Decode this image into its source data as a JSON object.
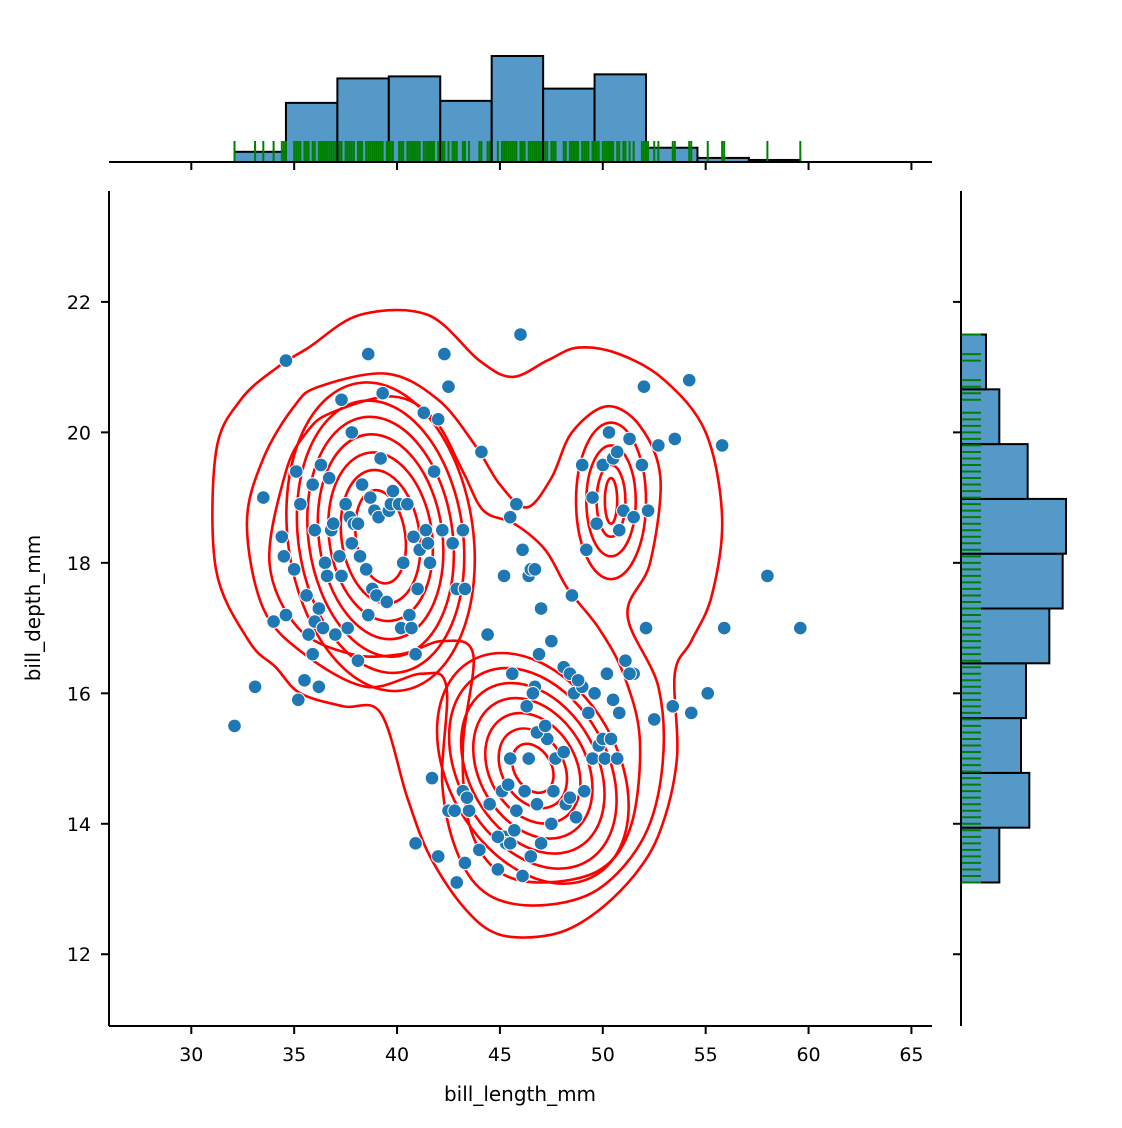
{
  "chart_data": {
    "type": "scatter",
    "title": "",
    "xlabel": "bill_length_mm",
    "ylabel": "bill_depth_mm",
    "xlim": [
      26,
      66
    ],
    "ylim": [
      10.9,
      23.7
    ],
    "xticks": [
      30,
      35,
      40,
      45,
      50,
      55,
      60,
      65
    ],
    "yticks": [
      12,
      14,
      16,
      18,
      20,
      22
    ],
    "grid": false,
    "legend": "none",
    "colors": {
      "points": "#1f77b4",
      "point_edge": "#ffffff",
      "hist_fill": "#5599c8",
      "hist_edge": "#000000",
      "kde": "#ff0000",
      "rug": "#008000"
    },
    "points": [
      [
        32.1,
        15.5
      ],
      [
        33.1,
        16.1
      ],
      [
        33.5,
        19.0
      ],
      [
        34.0,
        17.1
      ],
      [
        34.4,
        18.4
      ],
      [
        34.5,
        18.1
      ],
      [
        34.6,
        21.1
      ],
      [
        34.6,
        17.2
      ],
      [
        35.0,
        17.9
      ],
      [
        35.1,
        19.4
      ],
      [
        35.2,
        15.9
      ],
      [
        35.3,
        18.9
      ],
      [
        35.5,
        16.2
      ],
      [
        35.6,
        17.5
      ],
      [
        35.7,
        16.9
      ],
      [
        35.9,
        19.2
      ],
      [
        35.9,
        16.6
      ],
      [
        36.0,
        18.5
      ],
      [
        36.0,
        17.1
      ],
      [
        36.2,
        16.1
      ],
      [
        36.2,
        17.3
      ],
      [
        36.3,
        19.5
      ],
      [
        36.4,
        17.0
      ],
      [
        36.5,
        18.0
      ],
      [
        36.6,
        17.8
      ],
      [
        36.7,
        19.3
      ],
      [
        36.8,
        18.5
      ],
      [
        36.9,
        18.6
      ],
      [
        37.0,
        16.9
      ],
      [
        37.2,
        18.1
      ],
      [
        37.3,
        20.5
      ],
      [
        37.3,
        17.8
      ],
      [
        37.5,
        18.9
      ],
      [
        37.6,
        17.0
      ],
      [
        37.7,
        18.7
      ],
      [
        37.8,
        20.0
      ],
      [
        37.8,
        18.3
      ],
      [
        37.9,
        18.6
      ],
      [
        38.1,
        18.6
      ],
      [
        38.1,
        16.5
      ],
      [
        38.2,
        18.1
      ],
      [
        38.3,
        19.2
      ],
      [
        38.5,
        17.9
      ],
      [
        38.6,
        21.2
      ],
      [
        38.6,
        17.2
      ],
      [
        38.7,
        19.0
      ],
      [
        38.8,
        17.6
      ],
      [
        38.9,
        18.8
      ],
      [
        39.0,
        17.5
      ],
      [
        39.1,
        18.7
      ],
      [
        39.2,
        19.6
      ],
      [
        39.3,
        20.6
      ],
      [
        39.5,
        17.4
      ],
      [
        39.6,
        18.8
      ],
      [
        39.7,
        18.9
      ],
      [
        39.8,
        19.1
      ],
      [
        40.1,
        18.9
      ],
      [
        40.2,
        17.0
      ],
      [
        40.3,
        18.0
      ],
      [
        40.5,
        18.9
      ],
      [
        40.6,
        17.2
      ],
      [
        40.7,
        17.0
      ],
      [
        40.8,
        18.4
      ],
      [
        40.9,
        16.6
      ],
      [
        41.0,
        17.6
      ],
      [
        41.1,
        18.2
      ],
      [
        41.3,
        20.3
      ],
      [
        41.4,
        18.5
      ],
      [
        41.5,
        18.3
      ],
      [
        41.6,
        18.0
      ],
      [
        41.8,
        19.4
      ],
      [
        42.0,
        20.2
      ],
      [
        42.2,
        18.5
      ],
      [
        42.3,
        21.2
      ],
      [
        42.5,
        20.7
      ],
      [
        42.7,
        18.3
      ],
      [
        42.9,
        17.6
      ],
      [
        43.2,
        18.5
      ],
      [
        43.3,
        17.6
      ],
      [
        44.1,
        19.7
      ],
      [
        45.2,
        17.8
      ],
      [
        45.5,
        18.7
      ],
      [
        45.8,
        18.9
      ],
      [
        46.0,
        21.5
      ],
      [
        46.1,
        18.2
      ],
      [
        46.4,
        17.8
      ],
      [
        46.5,
        17.9
      ],
      [
        46.7,
        17.9
      ],
      [
        47.0,
        17.3
      ],
      [
        47.5,
        16.8
      ],
      [
        48.1,
        16.4
      ],
      [
        48.5,
        17.5
      ],
      [
        49.0,
        19.5
      ],
      [
        49.2,
        18.2
      ],
      [
        49.5,
        19.0
      ],
      [
        49.7,
        18.6
      ],
      [
        50.0,
        19.5
      ],
      [
        50.3,
        20.0
      ],
      [
        50.5,
        19.6
      ],
      [
        50.7,
        19.7
      ],
      [
        50.8,
        18.5
      ],
      [
        51.0,
        18.8
      ],
      [
        51.3,
        19.9
      ],
      [
        51.5,
        18.7
      ],
      [
        51.9,
        19.5
      ],
      [
        52.0,
        20.7
      ],
      [
        52.2,
        18.8
      ],
      [
        52.7,
        19.8
      ],
      [
        53.5,
        19.9
      ],
      [
        54.2,
        20.8
      ],
      [
        55.8,
        19.8
      ],
      [
        40.9,
        13.7
      ],
      [
        41.7,
        14.7
      ],
      [
        42.0,
        13.5
      ],
      [
        42.5,
        14.2
      ],
      [
        42.8,
        14.2
      ],
      [
        42.9,
        13.1
      ],
      [
        43.2,
        14.5
      ],
      [
        43.3,
        13.4
      ],
      [
        43.5,
        14.2
      ],
      [
        44.0,
        13.6
      ],
      [
        44.5,
        14.3
      ],
      [
        44.9,
        13.3
      ],
      [
        45.1,
        14.5
      ],
      [
        45.2,
        13.8
      ],
      [
        45.3,
        13.7
      ],
      [
        45.4,
        14.6
      ],
      [
        45.5,
        13.7
      ],
      [
        45.7,
        13.9
      ],
      [
        45.8,
        14.2
      ],
      [
        46.1,
        13.2
      ],
      [
        46.2,
        14.5
      ],
      [
        46.4,
        15.0
      ],
      [
        46.5,
        13.5
      ],
      [
        46.8,
        14.3
      ],
      [
        47.0,
        13.7
      ],
      [
        47.3,
        15.3
      ],
      [
        47.5,
        14.0
      ],
      [
        47.7,
        15.0
      ],
      [
        48.1,
        15.1
      ],
      [
        48.2,
        14.3
      ],
      [
        48.4,
        14.4
      ],
      [
        48.7,
        14.1
      ],
      [
        49.1,
        14.5
      ],
      [
        49.5,
        15.0
      ],
      [
        49.8,
        15.2
      ],
      [
        50.0,
        15.3
      ],
      [
        50.1,
        15.0
      ],
      [
        50.4,
        15.3
      ],
      [
        50.5,
        15.9
      ],
      [
        51.1,
        16.5
      ],
      [
        51.5,
        16.3
      ],
      [
        52.1,
        17.0
      ],
      [
        52.5,
        15.6
      ],
      [
        53.4,
        15.8
      ],
      [
        54.3,
        15.7
      ],
      [
        55.1,
        16.0
      ],
      [
        55.9,
        17.0
      ],
      [
        58.0,
        17.8
      ],
      [
        59.6,
        17.0
      ],
      [
        43.4,
        14.4
      ],
      [
        44.9,
        13.8
      ],
      [
        45.7,
        13.9
      ],
      [
        46.3,
        15.8
      ],
      [
        46.7,
        16.1
      ],
      [
        47.6,
        14.5
      ],
      [
        48.6,
        16.0
      ],
      [
        49.0,
        16.1
      ],
      [
        50.7,
        15.0
      ],
      [
        46.9,
        16.6
      ],
      [
        49.3,
        15.7
      ],
      [
        48.4,
        16.3
      ],
      [
        46.8,
        15.4
      ],
      [
        45.5,
        15.0
      ],
      [
        44.4,
        16.9
      ],
      [
        46.6,
        16.0
      ],
      [
        47.2,
        15.5
      ],
      [
        48.8,
        16.2
      ],
      [
        49.6,
        16.0
      ],
      [
        50.2,
        16.3
      ],
      [
        51.3,
        16.3
      ],
      [
        50.8,
        15.7
      ],
      [
        45.6,
        16.3
      ]
    ],
    "x_hist": {
      "bins": [
        32.1,
        34.6,
        37.1,
        39.6,
        42.1,
        44.6,
        47.1,
        49.6,
        52.1,
        54.6,
        57.1,
        59.6
      ],
      "counts": [
        5,
        29,
        41,
        42,
        30,
        52,
        36,
        43,
        7,
        2,
        1
      ]
    },
    "y_hist": {
      "bins": [
        13.1,
        13.94,
        14.78,
        15.62,
        16.46,
        17.3,
        18.14,
        18.98,
        19.82,
        20.66,
        21.5
      ],
      "counts": [
        23,
        41,
        36,
        39,
        53,
        61,
        63,
        40,
        23,
        15
      ]
    },
    "kde_contours": [
      {
        "center": [
          39.2,
          18.4
        ],
        "rx": [
          1.2,
          1.9,
          2.5,
          3.0,
          3.5,
          4.0,
          4.5
        ],
        "ry": [
          0.72,
          1.03,
          1.3,
          1.58,
          1.85,
          2.1,
          2.38
        ],
        "angle": -8
      },
      {
        "center": [
          46.6,
          14.85
        ],
        "rx": [
          0.9,
          1.5,
          2.1,
          2.6,
          3.1,
          3.6,
          4.1
        ],
        "ry": [
          0.4,
          0.65,
          0.9,
          1.15,
          1.4,
          1.65,
          1.9
        ],
        "angle": -30
      },
      {
        "center": [
          50.4,
          18.95
        ],
        "rx": [
          0.3,
          0.7,
          1.2,
          1.7
        ],
        "ry": [
          0.35,
          0.55,
          0.85,
          1.2
        ],
        "angle": 0
      }
    ],
    "kde_outer": [
      [
        [
          35.7,
          21.3
        ],
        [
          38.2,
          21.8
        ],
        [
          41.5,
          21.8
        ],
        [
          44.0,
          21.1
        ],
        [
          45.6,
          20.85
        ],
        [
          47.3,
          21.1
        ],
        [
          48.8,
          21.3
        ],
        [
          50.8,
          21.2
        ],
        [
          53.0,
          20.8
        ],
        [
          55.0,
          20.0
        ],
        [
          55.8,
          18.7
        ],
        [
          55.3,
          17.5
        ],
        [
          54.3,
          16.8
        ],
        [
          53.5,
          16.3
        ],
        [
          53.6,
          15.0
        ],
        [
          52.8,
          13.9
        ],
        [
          51.5,
          13.2
        ],
        [
          49.5,
          12.6
        ],
        [
          47.5,
          12.3
        ],
        [
          45.0,
          12.3
        ],
        [
          43.3,
          12.7
        ],
        [
          41.6,
          13.5
        ],
        [
          40.5,
          14.4
        ],
        [
          39.2,
          15.7
        ],
        [
          37.4,
          15.8
        ],
        [
          35.3,
          16.0
        ],
        [
          34.1,
          16.4
        ],
        [
          32.8,
          16.8
        ],
        [
          31.2,
          17.9
        ],
        [
          31.2,
          19.7
        ],
        [
          32.4,
          20.5
        ],
        [
          34.2,
          21.0
        ]
      ],
      [
        [
          36.2,
          20.7
        ],
        [
          39.5,
          20.9
        ],
        [
          42.0,
          20.5
        ],
        [
          43.8,
          19.8
        ],
        [
          45.0,
          19.2
        ],
        [
          46.3,
          18.85
        ],
        [
          47.5,
          19.3
        ],
        [
          48.5,
          20.0
        ],
        [
          50.2,
          20.4
        ],
        [
          51.8,
          20.1
        ],
        [
          52.8,
          19.3
        ],
        [
          52.3,
          18.0
        ],
        [
          51.2,
          17.2
        ],
        [
          52.7,
          16.1
        ],
        [
          52.9,
          14.9
        ],
        [
          52.0,
          13.8
        ],
        [
          49.8,
          13.0
        ],
        [
          47.0,
          12.75
        ],
        [
          44.5,
          12.9
        ],
        [
          43.0,
          13.5
        ],
        [
          42.2,
          14.6
        ],
        [
          42.4,
          16.1
        ],
        [
          41.2,
          16.3
        ],
        [
          38.5,
          16.1
        ],
        [
          35.5,
          16.6
        ],
        [
          33.5,
          17.3
        ],
        [
          32.7,
          18.6
        ],
        [
          33.5,
          19.6
        ],
        [
          35.0,
          20.4
        ]
      ],
      [
        [
          36.8,
          20.3
        ],
        [
          39.8,
          20.55
        ],
        [
          41.8,
          20.2
        ],
        [
          43.2,
          19.4
        ],
        [
          44.2,
          18.8
        ],
        [
          45.7,
          18.6
        ],
        [
          47.2,
          18.2
        ],
        [
          48.3,
          17.6
        ],
        [
          49.8,
          17.0
        ],
        [
          51.0,
          16.3
        ],
        [
          51.8,
          15.3
        ],
        [
          51.4,
          14.0
        ],
        [
          49.9,
          13.3
        ],
        [
          47.0,
          13.1
        ],
        [
          44.8,
          13.3
        ],
        [
          43.5,
          14.0
        ],
        [
          43.2,
          15.2
        ],
        [
          43.7,
          16.6
        ],
        [
          42.2,
          16.8
        ],
        [
          40.2,
          16.6
        ],
        [
          37.8,
          16.6
        ],
        [
          35.2,
          17.0
        ],
        [
          33.8,
          18.0
        ],
        [
          34.6,
          19.4
        ],
        [
          35.6,
          20.0
        ]
      ]
    ],
    "rug_x": [
      32.1,
      33.1,
      33.5,
      34.0,
      34.4,
      34.5,
      34.6,
      35.0,
      35.1,
      35.2,
      35.3,
      35.5,
      35.6,
      35.7,
      35.9,
      36.0,
      36.2,
      36.3,
      36.4,
      36.5,
      36.6,
      36.7,
      36.8,
      36.9,
      37.0,
      37.2,
      37.3,
      37.5,
      37.6,
      37.7,
      37.8,
      37.9,
      38.1,
      38.2,
      38.3,
      38.5,
      38.6,
      38.7,
      38.8,
      38.9,
      39.0,
      39.1,
      39.2,
      39.3,
      39.5,
      39.6,
      39.7,
      39.8,
      40.1,
      40.2,
      40.3,
      40.5,
      40.6,
      40.7,
      40.8,
      40.9,
      41.0,
      41.1,
      41.3,
      41.4,
      41.5,
      41.6,
      41.7,
      41.8,
      42.0,
      42.2,
      42.3,
      42.5,
      42.7,
      42.8,
      42.9,
      43.2,
      43.3,
      43.5,
      44.0,
      44.1,
      44.4,
      44.5,
      44.9,
      45.1,
      45.2,
      45.3,
      45.4,
      45.5,
      45.6,
      45.7,
      45.8,
      46.0,
      46.1,
      46.2,
      46.4,
      46.5,
      46.6,
      46.7,
      46.8,
      46.9,
      47.0,
      47.2,
      47.3,
      47.5,
      47.6,
      47.7,
      48.1,
      48.2,
      48.4,
      48.5,
      48.6,
      48.7,
      48.8,
      49.0,
      49.1,
      49.2,
      49.3,
      49.5,
      49.6,
      49.7,
      49.8,
      50.0,
      50.1,
      50.2,
      50.3,
      50.4,
      50.5,
      50.7,
      50.8,
      51.0,
      51.1,
      51.3,
      51.5,
      51.9,
      52.0,
      52.1,
      52.2,
      52.5,
      52.7,
      53.4,
      53.5,
      54.2,
      54.3,
      55.1,
      55.8,
      55.9,
      58.0,
      59.6
    ],
    "rug_y": [
      13.1,
      13.2,
      13.3,
      13.4,
      13.5,
      13.6,
      13.7,
      13.8,
      13.9,
      14.0,
      14.1,
      14.2,
      14.3,
      14.4,
      14.5,
      14.6,
      14.7,
      14.8,
      14.9,
      15.0,
      15.1,
      15.2,
      15.3,
      15.4,
      15.5,
      15.6,
      15.7,
      15.8,
      15.9,
      16.0,
      16.1,
      16.2,
      16.3,
      16.4,
      16.5,
      16.6,
      16.7,
      16.8,
      16.9,
      17.0,
      17.1,
      17.2,
      17.3,
      17.4,
      17.5,
      17.6,
      17.7,
      17.8,
      17.9,
      18.0,
      18.1,
      18.2,
      18.3,
      18.4,
      18.5,
      18.6,
      18.7,
      18.8,
      18.9,
      19.0,
      19.1,
      19.2,
      19.3,
      19.4,
      19.5,
      19.6,
      19.7,
      19.8,
      19.9,
      20.0,
      20.1,
      20.2,
      20.3,
      20.5,
      20.6,
      20.7,
      20.8,
      21.1,
      21.2,
      21.5
    ]
  }
}
